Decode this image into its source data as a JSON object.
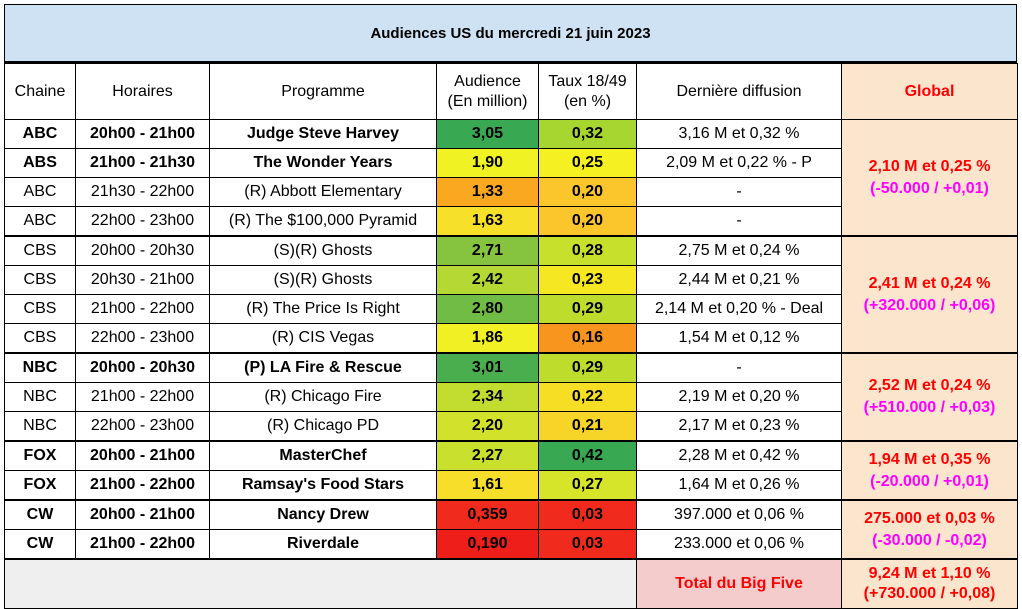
{
  "title": "Audiences US du mercredi 21 juin 2023",
  "headers": {
    "chaine": "Chaine",
    "horaires": "Horaires",
    "programme": "Programme",
    "audience_l1": "Audience",
    "audience_l2": "(En million)",
    "taux_l1": "Taux 18/49",
    "taux_l2": "(en %)",
    "derniere": "Dernière diffusion",
    "global": "Global"
  },
  "rows": [
    {
      "chaine": "ABC",
      "horaires": "20h00 - 21h00",
      "programme": "Judge Steve Harvey",
      "audience": "3,05",
      "taux": "0,32",
      "derniere": "3,16 M et 0,32 %",
      "bold": true,
      "aud_color": "#38a852",
      "taux_color": "#a8d630"
    },
    {
      "chaine": "ABS",
      "horaires": "21h00 - 21h30",
      "programme": "The Wonder Years",
      "audience": "1,90",
      "taux": "0,25",
      "derniere": "2,09 M et 0,22 % - P",
      "bold": true,
      "aud_color": "#f0f224",
      "taux_color": "#f5f021"
    },
    {
      "chaine": "ABC",
      "horaires": "21h30 - 22h00",
      "programme": "(R) Abbott Elementary",
      "audience": "1,33",
      "taux": "0,20",
      "derniere": "-",
      "bold": false,
      "aud_color": "#f9a81f",
      "taux_color": "#fbc52c"
    },
    {
      "chaine": "ABC",
      "horaires": "22h00 - 23h00",
      "programme": "(R) The $100,000 Pyramid",
      "audience": "1,63",
      "taux": "0,20",
      "derniere": "-",
      "bold": false,
      "aud_color": "#f7e02a",
      "taux_color": "#fbc52c"
    },
    {
      "chaine": "CBS",
      "horaires": "20h00 - 20h30",
      "programme": "(S)(R) Ghosts",
      "audience": "2,71",
      "taux": "0,28",
      "derniere": "2,75 M et 0,24 %",
      "bold": false,
      "aud_color": "#86c440",
      "taux_color": "#c6e02c",
      "sep": true
    },
    {
      "chaine": "CBS",
      "horaires": "20h30 - 21h00",
      "programme": "(S)(R) Ghosts",
      "audience": "2,42",
      "taux": "0,23",
      "derniere": "2,44 M et 0,21 %",
      "bold": false,
      "aud_color": "#b6d834",
      "taux_color": "#f5e823"
    },
    {
      "chaine": "CBS",
      "horaires": "21h00 - 22h00",
      "programme": "(R) The Price Is Right",
      "audience": "2,80",
      "taux": "0,29",
      "derniere": "2,14 M et 0,20 % - Deal",
      "bold": false,
      "aud_color": "#70bc44",
      "taux_color": "#bedc2c"
    },
    {
      "chaine": "CBS",
      "horaires": "22h00 - 23h00",
      "programme": "(R) CIS Vegas",
      "audience": "1,86",
      "taux": "0,16",
      "derniere": "1,54 M et 0,12 %",
      "bold": false,
      "aud_color": "#f1f024",
      "taux_color": "#f7951f"
    },
    {
      "chaine": "NBC",
      "horaires": "20h00 - 20h30",
      "programme": "(P) LA Fire & Rescue",
      "audience": "3,01",
      "taux": "0,29",
      "derniere": "-",
      "bold": true,
      "aud_color": "#4aae4e",
      "taux_color": "#bedc2c",
      "sep": true
    },
    {
      "chaine": "NBC",
      "horaires": "21h00 - 22h00",
      "programme": "(R) Chicago Fire",
      "audience": "2,34",
      "taux": "0,22",
      "derniere": "2,19 M et 0,20 %",
      "bold": false,
      "aud_color": "#c2dc30",
      "taux_color": "#f6de24"
    },
    {
      "chaine": "NBC",
      "horaires": "22h00 - 23h00",
      "programme": "(R) Chicago PD",
      "audience": "2,20",
      "taux": "0,21",
      "derniere": "2,17 M et 0,23 %",
      "bold": false,
      "aud_color": "#d2e22c",
      "taux_color": "#f7d428"
    },
    {
      "chaine": "FOX",
      "horaires": "20h00 - 21h00",
      "programme": "MasterChef",
      "audience": "2,27",
      "taux": "0,42",
      "derniere": "2,28 M et 0,42 %",
      "bold": true,
      "aud_color": "#c9e02e",
      "taux_color": "#38a852",
      "sep": true
    },
    {
      "chaine": "FOX",
      "horaires": "21h00 - 22h00",
      "programme": "Ramsay's Food Stars",
      "audience": "1,61",
      "taux": "0,27",
      "derniere": "1,64 M et 0,26 %",
      "bold": true,
      "aud_color": "#f7de2a",
      "taux_color": "#d6e42a"
    },
    {
      "chaine": "CW",
      "horaires": "20h00 - 21h00",
      "programme": "Nancy Drew",
      "audience": "0,359",
      "taux": "0,03",
      "derniere": "397.000 et 0,06 %",
      "bold": true,
      "aud_color": "#f02a1c",
      "taux_color": "#f02a1c",
      "sep": true
    },
    {
      "chaine": "CW",
      "horaires": "21h00 - 22h00",
      "programme": "Riverdale",
      "audience": "0,190",
      "taux": "0,03",
      "derniere": "233.000 et 0,06 %",
      "bold": true,
      "aud_color": "#ee1e1a",
      "taux_color": "#f02a1c"
    }
  ],
  "globals": [
    {
      "main": "2,10 M et 0,25 %",
      "sub": "(-50.000 / +0,01)"
    },
    {
      "main": "2,41 M et 0,24 %",
      "sub": "(+320.000 / +0,06)"
    },
    {
      "main": "2,52 M et 0,24 %",
      "sub": "(+510.000 / +0,03)"
    },
    {
      "main": "1,94 M et 0,35 %",
      "sub": "(-20.000 / +0,01)"
    },
    {
      "main": "275.000 et 0,03 %",
      "sub": "(-30.000 / -0,02)"
    }
  ],
  "total": {
    "label": "Total du Big Five",
    "main": "9,24 M et 1,10 %",
    "sub": "(+730.000 / +0,08)"
  }
}
